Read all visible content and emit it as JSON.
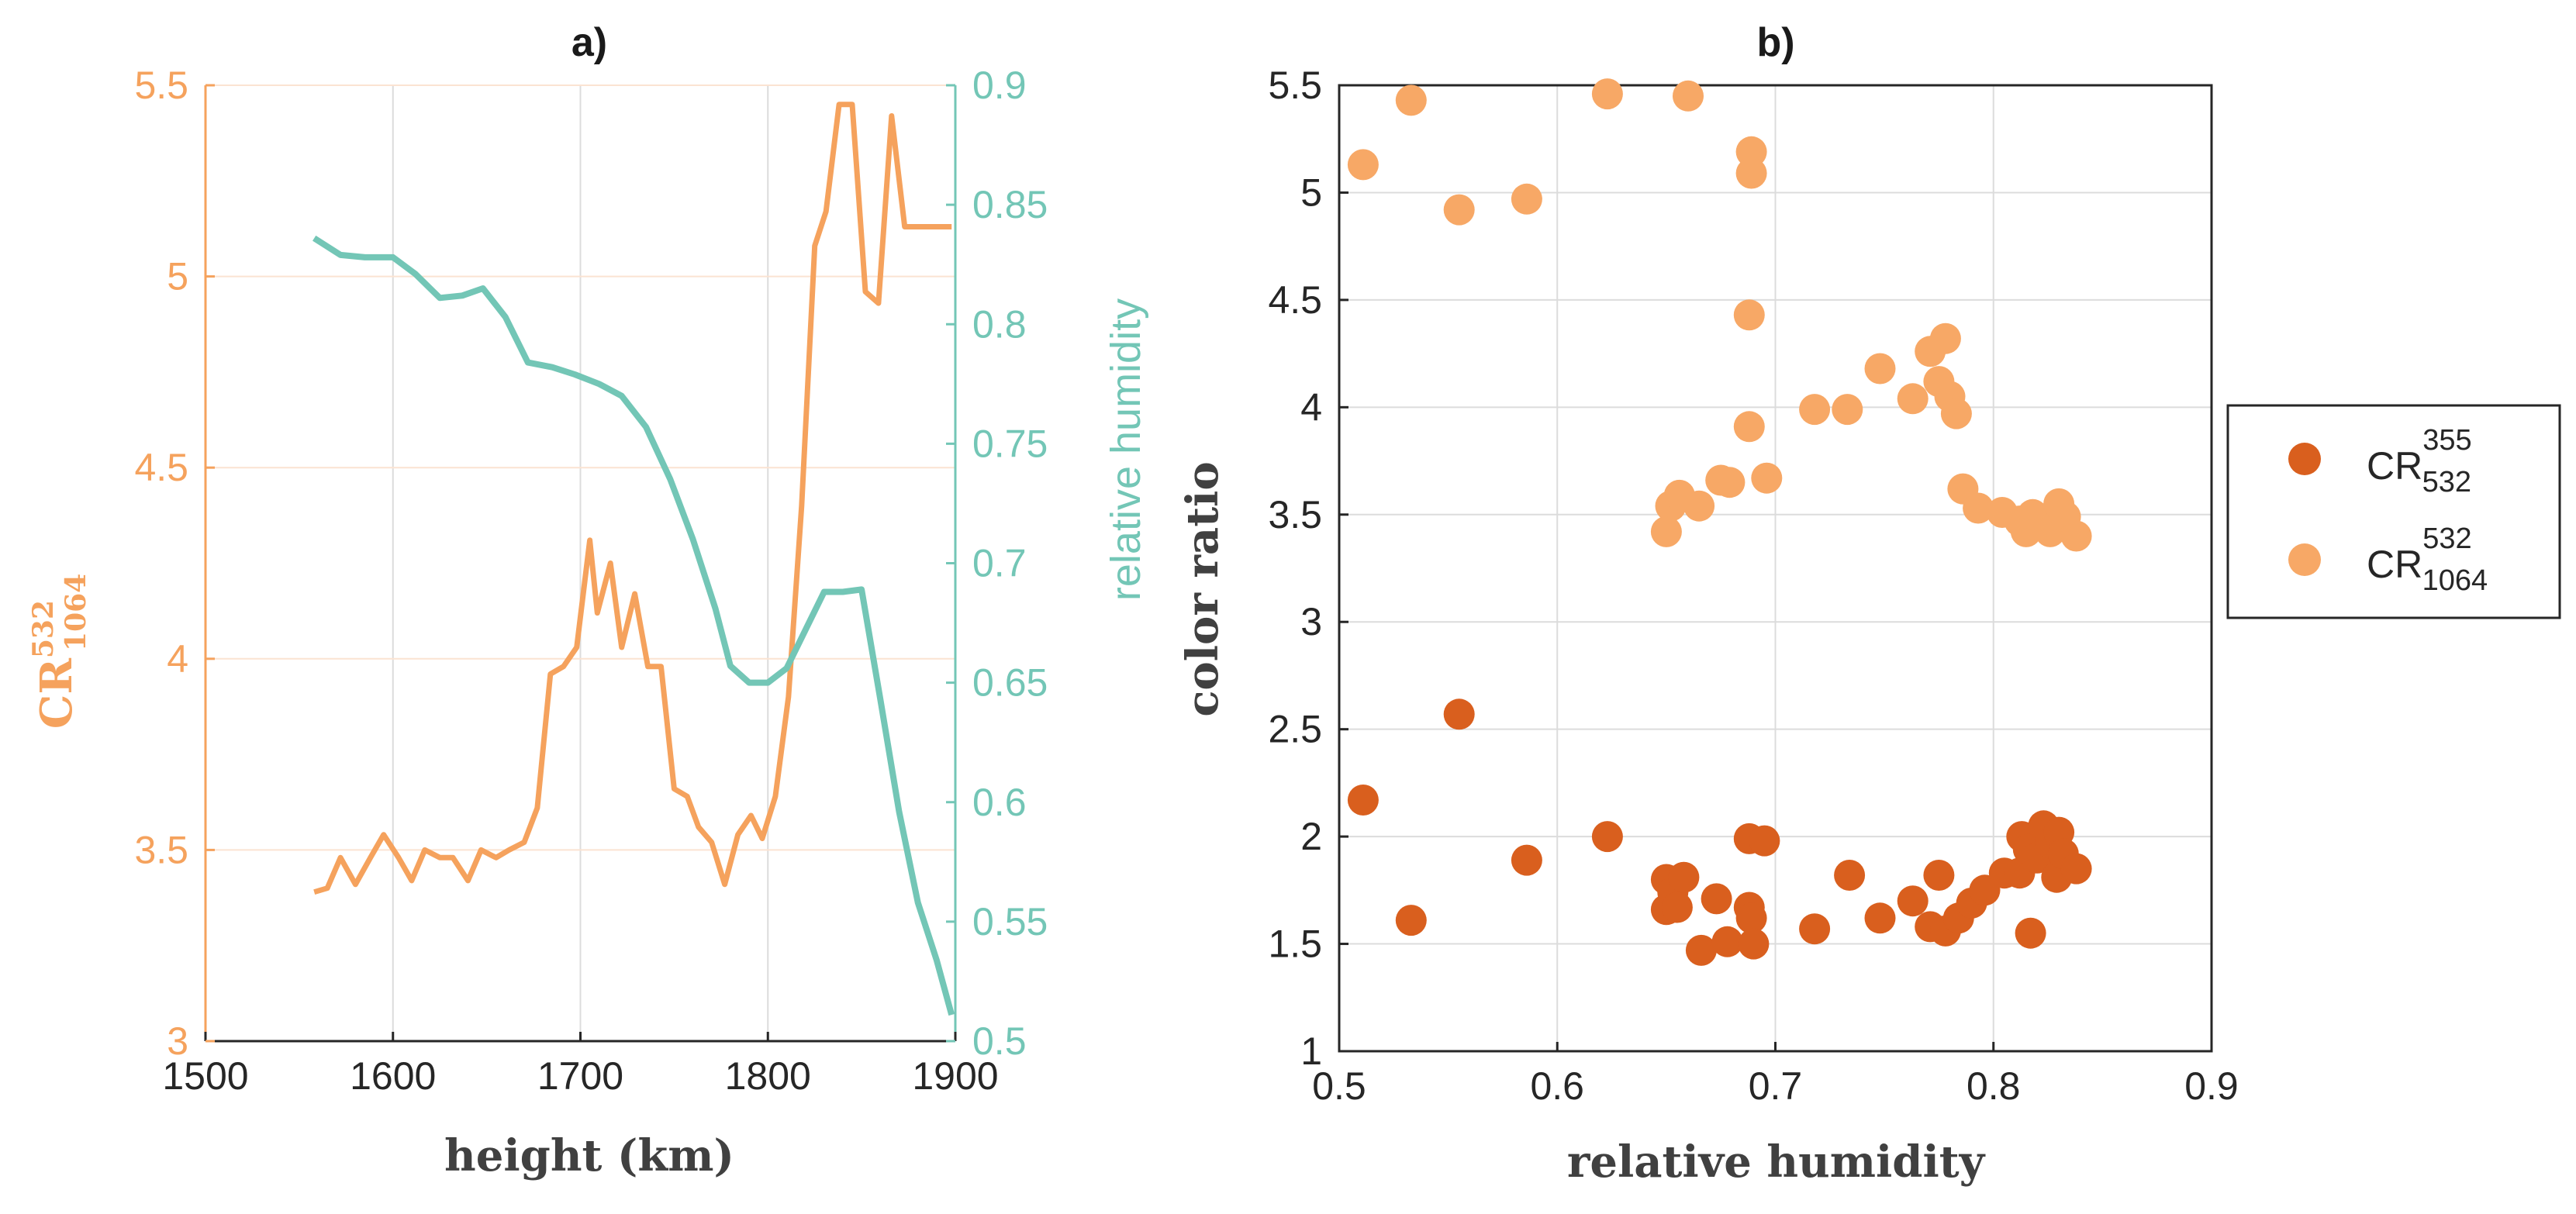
{
  "colors": {
    "cr1064": "#F5A25D",
    "cr1064_marker": "#F7A866",
    "cr532": "#D95F1E",
    "rh": "#73C6B6",
    "axis": "#262626",
    "grid": "#dcdcdc",
    "title": "#1a1a1a",
    "label": "#404040"
  },
  "chart_data": [
    {
      "panel": "a)",
      "type": "line",
      "title": "a)",
      "xlabel": "height (km)",
      "xlim": [
        1500,
        1900
      ],
      "xticks": [
        "1500",
        "1600",
        "1700",
        "1800",
        "1900"
      ],
      "ylabel_left": {
        "base": "CR",
        "sup": "532",
        "sub": "1064"
      },
      "ylim_left": [
        3,
        5.5
      ],
      "yticks_left": [
        "3",
        "3.5",
        "4",
        "4.5",
        "5",
        "5.5"
      ],
      "ylabel_right": "relative humidity",
      "ylim_right": [
        0.5,
        0.9
      ],
      "yticks_right": [
        "0.5",
        "0.55",
        "0.6",
        "0.65",
        "0.7",
        "0.75",
        "0.8",
        "0.85",
        "0.9"
      ],
      "grid": true,
      "series": [
        {
          "axis": "left",
          "color_key": "cr1064",
          "x": [
            1558,
            1565,
            1572,
            1580,
            1588,
            1595,
            1603,
            1610,
            1617,
            1625,
            1632,
            1640,
            1647,
            1655,
            1662,
            1670,
            1677,
            1684,
            1691,
            1698,
            1705,
            1709,
            1716,
            1722,
            1729,
            1736,
            1743,
            1750,
            1757,
            1763,
            1770,
            1777,
            1784,
            1791,
            1797,
            1804,
            1811,
            1818,
            1825,
            1831,
            1838,
            1845,
            1852,
            1859,
            1866,
            1873,
            1880,
            1887,
            1894,
            1898
          ],
          "y": [
            3.39,
            3.4,
            3.48,
            3.41,
            3.48,
            3.54,
            3.48,
            3.42,
            3.5,
            3.48,
            3.48,
            3.42,
            3.5,
            3.48,
            3.5,
            3.52,
            3.61,
            3.96,
            3.98,
            4.03,
            4.31,
            4.12,
            4.25,
            4.03,
            4.17,
            3.98,
            3.98,
            3.66,
            3.64,
            3.56,
            3.52,
            3.41,
            3.54,
            3.59,
            3.53,
            3.64,
            3.9,
            4.4,
            5.08,
            5.17,
            5.45,
            5.45,
            4.96,
            4.93,
            5.42,
            5.13,
            5.13,
            5.13,
            5.13,
            5.13
          ]
        },
        {
          "axis": "right",
          "color_key": "rh",
          "x": [
            1558,
            1572,
            1585,
            1600,
            1612,
            1625,
            1637,
            1648,
            1660,
            1672,
            1685,
            1697,
            1710,
            1722,
            1735,
            1748,
            1760,
            1772,
            1780,
            1790,
            1800,
            1810,
            1820,
            1830,
            1840,
            1850,
            1860,
            1870,
            1880,
            1890,
            1898
          ],
          "y": [
            0.836,
            0.829,
            0.828,
            0.828,
            0.821,
            0.811,
            0.812,
            0.815,
            0.803,
            0.784,
            0.782,
            0.779,
            0.775,
            0.77,
            0.757,
            0.735,
            0.71,
            0.681,
            0.657,
            0.65,
            0.65,
            0.656,
            0.672,
            0.688,
            0.688,
            0.689,
            0.643,
            0.596,
            0.558,
            0.534,
            0.511
          ]
        }
      ]
    },
    {
      "panel": "b)",
      "type": "scatter",
      "title": "b)",
      "xlabel": "relative humidity",
      "ylabel": "color ratio",
      "xlim": [
        0.5,
        0.9
      ],
      "ylim": [
        1,
        5.5
      ],
      "xticks": [
        "0.5",
        "0.6",
        "0.7",
        "0.8",
        "0.9"
      ],
      "yticks": [
        "1",
        "1.5",
        "2",
        "2.5",
        "3",
        "3.5",
        "4",
        "4.5",
        "5",
        "5.5"
      ],
      "grid": true,
      "legend": "outside-right",
      "series": [
        {
          "name": {
            "base": "CR",
            "sup": "355",
            "sub": "532"
          },
          "color_key": "cr532",
          "points": [
            [
              0.511,
              2.17
            ],
            [
              0.533,
              1.61
            ],
            [
              0.555,
              2.57
            ],
            [
              0.586,
              1.89
            ],
            [
              0.623,
              2.0
            ],
            [
              0.65,
              1.8
            ],
            [
              0.65,
              1.66
            ],
            [
              0.653,
              1.74
            ],
            [
              0.655,
              1.67
            ],
            [
              0.658,
              1.81
            ],
            [
              0.666,
              1.47
            ],
            [
              0.673,
              1.71
            ],
            [
              0.678,
              1.51
            ],
            [
              0.688,
              1.99
            ],
            [
              0.688,
              1.67
            ],
            [
              0.689,
              1.62
            ],
            [
              0.69,
              1.5
            ],
            [
              0.695,
              1.98
            ],
            [
              0.718,
              1.57
            ],
            [
              0.734,
              1.82
            ],
            [
              0.748,
              1.62
            ],
            [
              0.763,
              1.7
            ],
            [
              0.771,
              1.58
            ],
            [
              0.775,
              1.82
            ],
            [
              0.778,
              1.56
            ],
            [
              0.784,
              1.62
            ],
            [
              0.79,
              1.69
            ],
            [
              0.796,
              1.75
            ],
            [
              0.805,
              1.83
            ],
            [
              0.812,
              1.83
            ],
            [
              0.813,
              2.0
            ],
            [
              0.816,
              1.94
            ],
            [
              0.817,
              1.55
            ],
            [
              0.82,
              1.9
            ],
            [
              0.823,
              2.05
            ],
            [
              0.826,
              1.97
            ],
            [
              0.829,
              1.81
            ],
            [
              0.83,
              2.02
            ],
            [
              0.832,
              1.92
            ],
            [
              0.838,
              1.85
            ]
          ]
        },
        {
          "name": {
            "base": "CR",
            "sup": "532",
            "sub": "1064"
          },
          "color_key": "cr1064_marker",
          "points": [
            [
              0.511,
              5.13
            ],
            [
              0.533,
              5.43
            ],
            [
              0.555,
              4.92
            ],
            [
              0.586,
              4.97
            ],
            [
              0.623,
              5.46
            ],
            [
              0.66,
              5.45
            ],
            [
              0.689,
              5.19
            ],
            [
              0.689,
              5.09
            ],
            [
              0.688,
              4.43
            ],
            [
              0.688,
              3.91
            ],
            [
              0.65,
              3.42
            ],
            [
              0.652,
              3.54
            ],
            [
              0.656,
              3.59
            ],
            [
              0.665,
              3.54
            ],
            [
              0.675,
              3.66
            ],
            [
              0.679,
              3.65
            ],
            [
              0.696,
              3.67
            ],
            [
              0.718,
              3.99
            ],
            [
              0.733,
              3.99
            ],
            [
              0.748,
              4.18
            ],
            [
              0.763,
              4.04
            ],
            [
              0.771,
              4.26
            ],
            [
              0.775,
              4.12
            ],
            [
              0.778,
              4.32
            ],
            [
              0.78,
              4.05
            ],
            [
              0.783,
              3.97
            ],
            [
              0.786,
              3.62
            ],
            [
              0.793,
              3.53
            ],
            [
              0.804,
              3.51
            ],
            [
              0.812,
              3.47
            ],
            [
              0.815,
              3.42
            ],
            [
              0.818,
              3.5
            ],
            [
              0.822,
              3.46
            ],
            [
              0.826,
              3.42
            ],
            [
              0.829,
              3.45
            ],
            [
              0.83,
              3.55
            ],
            [
              0.833,
              3.49
            ],
            [
              0.838,
              3.4
            ]
          ]
        }
      ]
    }
  ]
}
